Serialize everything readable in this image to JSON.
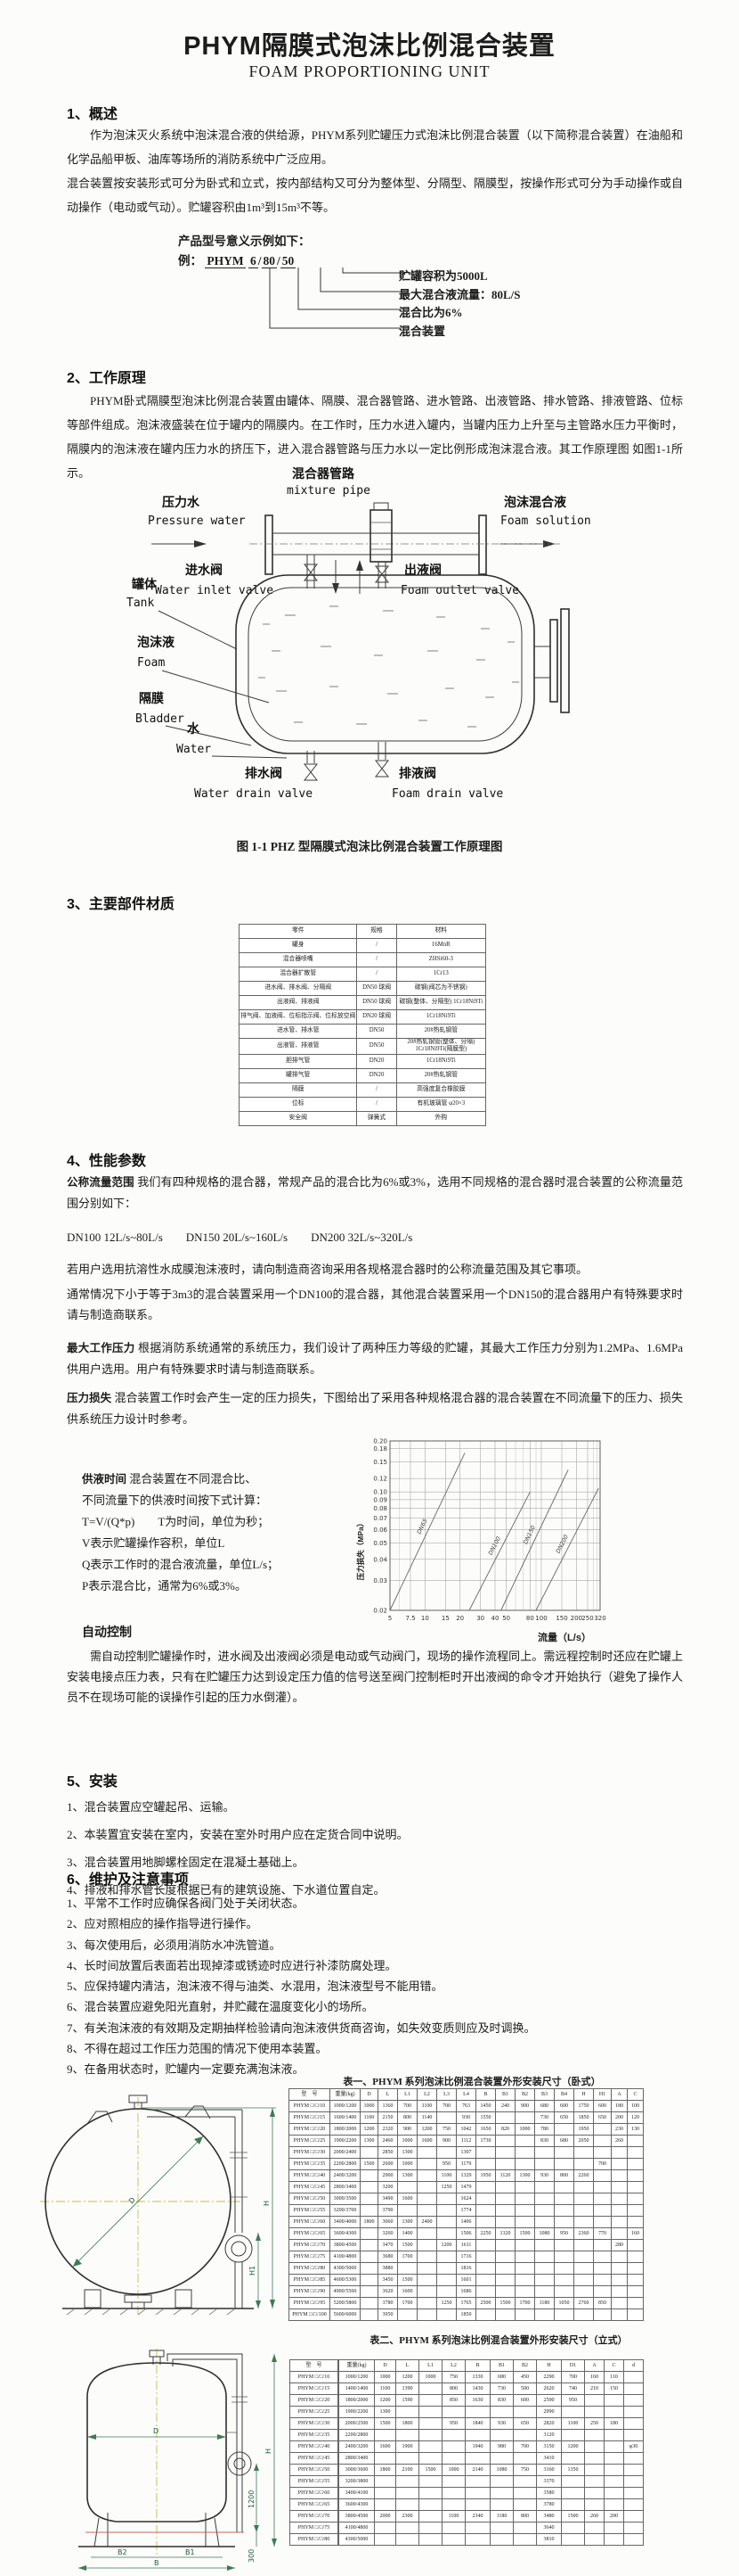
{
  "page": {
    "title": "PHYM隔膜式泡沫比例混合装置",
    "subtitle": "FOAM PROPORTIONING UNIT"
  },
  "s1": {
    "heading": "1、概述",
    "p1": "作为泡沫灭火系统中泡沫混合液的供给源，PHYM系列贮罐压力式泡沫比例混合装置（以下简称混合装置）在油船和化学品船甲板、油库等场所的消防系统中广泛应用。",
    "p2": "混合装置按安装形式可分为卧式和立式，按内部结构又可分为整体型、分隔型、隔膜型，按操作形式可分为手动操作或自动操作（电动或气动）。贮罐容积由1m³到15m³不等。"
  },
  "model": {
    "intro": "产品型号意义示例如下：",
    "prefix": "例：",
    "p1": "PHYM",
    "p2": "6",
    "p3": "80",
    "p4": "50",
    "sep": "/",
    "labels": [
      "贮罐容积为5000L",
      "最大混合液流量：80L/S",
      "混合比为6%",
      "混合装置"
    ]
  },
  "s2": {
    "heading": "2、工作原理",
    "p": "PHYM卧式隔膜型泡沫比例混合装置由罐体、隔膜、混合器管路、进水管路、出液管路、排水管路、排液管路、位标等部件组成。泡沫液盛装在位于罐内的隔膜内。在工作时，压力水进入罐内，当罐内压力上升至与主管路水压力平衡时，隔膜内的泡沫液在罐内压力水的挤压下，进入混合器管路与压力水以一定比例形成泡沫混合液。其工作原理图 如图1-1所示。"
  },
  "diagram": {
    "mixture_cn": "混合器管路",
    "mixture_en": "mixture pipe",
    "pressure_cn": "压力水",
    "pressure_en": "Pressure water",
    "solution_cn": "泡沫混合液",
    "solution_en": "Foam solution",
    "inlet_cn": "进水阀",
    "inlet_en": "Water inlet valve",
    "outlet_cn": "出液阀",
    "outlet_en": "Foam outlet valve",
    "tank_cn": "罐体",
    "tank_en": "Tank",
    "foam_cn": "泡沫液",
    "foam_en": "Foam",
    "bladder_cn": "隔膜",
    "bladder_en": "Bladder",
    "water_cn": "水",
    "water_en": "Water",
    "wdrain_cn": "排水阀",
    "wdrain_en": "Water drain valve",
    "fdrain_cn": "排液阀",
    "fdrain_en": "Foam drain valve"
  },
  "fig_caption": "图 1-1 PHZ 型隔膜式泡沫比例混合装置工作原理图",
  "s3": {
    "heading": "3、主要部件材质",
    "table": {
      "widths": [
        132,
        44,
        100
      ],
      "header": [
        "零件",
        "规格",
        "材料"
      ],
      "rows": [
        [
          "罐身",
          "/",
          "16MnR"
        ],
        [
          "混合器喷嘴",
          "/",
          "ZHSi60-3"
        ],
        [
          "混合器扩散管",
          "/",
          "1Cr13"
        ],
        [
          "进水阀、排水阀、分隔阀",
          "DN50 球阀",
          "碳钢(阀芯为不锈钢)"
        ],
        [
          "出液阀、排液阀",
          "DN50 球阀",
          "碳钢(整体、分隔型) 1Cr18Ni9Ti"
        ],
        [
          "排气阀、加液阀、位标指示阀、位标放空阀",
          "DN20 球阀",
          "1Cr18Ni9Ti"
        ],
        [
          "进水管、排水管",
          "DN50",
          "20#热轧钢管"
        ],
        [
          "出液管、排液管",
          "DN50",
          "20#热轧钢管(整体、分隔) 1Cr18Ni9Ti(隔膜型)"
        ],
        [
          "胆排气管",
          "DN20",
          "1Cr18Ni9Ti"
        ],
        [
          "罐排气管",
          "DN20",
          "20#热轧钢管"
        ],
        [
          "隔膜",
          "/",
          "高强度复合橡胶膜"
        ],
        [
          "位标",
          "/",
          "有机玻璃管 φ20×3"
        ],
        [
          "安全阀",
          "弹簧式",
          "外购"
        ]
      ]
    }
  },
  "s4": {
    "heading": "4、性能参数",
    "flow_label": "公称流量范围",
    "flow_text": "我们有四种规格的混合器，常规产品的混合比为6%或3%，选用不同规格的混合器时混合装置的公称流量范围分别如下：",
    "dn_line": "DN100  12L/s~80L/s　　DN150  20L/s~160L/s　　DN200  32L/s~320L/s",
    "p_afff": "若用户选用抗溶性水成膜泡沫液时，请向制造商咨询采用各规格混合器时的公称流量范围及其它事项。",
    "p_usual": "通常情况下小于等于3m3的混合装置采用一个DN100的混合器，其他混合装置采用一个DN150的混合器用户有特殊要求时请与制造商联系。",
    "maxp_label": "最大工作压力",
    "maxp_text": "根据消防系统通常的系统压力，我们设计了两种压力等级的贮罐，其最大工作压力分别为1.2MPa、1.6MPa供用户选用。用户有特殊要求时请与制造商联系。",
    "loss_label": "压力损失",
    "loss_text": "混合装置工作时会产生一定的压力损失，下图给出了采用各种规格混合器的混合装置在不同流量下的压力、损失供系统压力设计时参考。",
    "supply_label": "供液时间",
    "supply_first": "混合装置在不同混合比、",
    "supply_lines": [
      "不同流量下的供液时间按下式计算：",
      "T=V/(Q*p)　　T为时间，单位为秒；",
      "V表示贮罐操作容积，单位L",
      "Q表示工作时的混合液流量，单位L/s；",
      "P表示混合比，通常为6%或3%。"
    ],
    "auto_heading": "自动控制",
    "auto_text": "需自动控制贮罐操作时，进水阀及出液阀必须是电动或气动阀门，现场的操作流程同上。需远程控制时还应在贮罐上安装电接点压力表，只有在贮罐压力达到设定压力值的信号送至阀门控制柜时开出液阀的命令才开始执行（避免了操作人员不在现场可能的误操作引起的压力水倒灌）。"
  },
  "chart_data": {
    "type": "line",
    "title": "",
    "xlabel": "流量（L/s）",
    "ylabel": "压力损失（MPa）",
    "x_scale": "log",
    "y_scale": "log",
    "xlim": [
      5,
      320
    ],
    "ylim": [
      0.02,
      0.2
    ],
    "x_ticks": [
      "5",
      "7.5",
      "10",
      "15",
      "20",
      "30",
      "40",
      "50",
      "80",
      "100",
      "150",
      "200",
      "250",
      "320"
    ],
    "x_minor": [
      6,
      60,
      70,
      90,
      280,
      300
    ],
    "y_ticks": [
      "0.02",
      "0.03",
      "0.04",
      "0.05",
      "0.06",
      "0.07",
      "0.08",
      "0.09",
      "0.10",
      "0.12",
      "0.15",
      "0.18",
      "0.20"
    ],
    "grid": true,
    "legend": "labels-on-lines",
    "series": [
      {
        "name": "DN65",
        "points": [
          [
            5,
            0.02
          ],
          [
            22,
            0.17
          ]
        ]
      },
      {
        "name": "DN100",
        "points": [
          [
            24,
            0.02
          ],
          [
            80,
            0.1
          ]
        ]
      },
      {
        "name": "DN150",
        "points": [
          [
            45,
            0.02
          ],
          [
            170,
            0.135
          ]
        ]
      },
      {
        "name": "DN200",
        "points": [
          [
            90,
            0.02
          ],
          [
            310,
            0.105
          ]
        ]
      }
    ]
  },
  "s5": {
    "heading": "5、安装",
    "items": [
      "1、混合装置应空罐起吊、运输。",
      "2、本装置宜安装在室内，安装在室外时用户应在定货合同中说明。",
      "3、混合装置用地脚螺栓固定在混凝土基础上。",
      "4、排液和排水管长度根据已有的建筑设施、下水道位置自定。"
    ]
  },
  "s6": {
    "heading": "6、维护及注意事项",
    "items": [
      "1、平常不工作时应确保各阀门处于关闭状态。",
      "2、应对照相应的操作指导进行操作。",
      "3、每次使用后，必须用消防水冲洗管道。",
      "4、长时间放置后表面若出现掉漆或锈迹时应进行补漆防腐处理。",
      "5、应保持罐内清洁，泡沫液不得与油类、水混用，泡沫液型号不能用错。",
      "6、混合装置应避免阳光直射，并贮藏在温度变化小的场所。",
      "7、有关泡沫液的有效期及定期抽样检验请向泡沫液供货商咨询，如失效变质则应及时调换。",
      "8、不得在超过工作压力范围的情况下使用本装置。",
      "9、在备用状态时，贮罐内一定要充满泡沫液。"
    ]
  },
  "t1": {
    "title": "表一、PHYM 系列泡沫比例混合装置外形安装尺寸（卧式）",
    "table": {
      "widths": [
        46,
        34,
        20,
        22,
        22,
        22,
        22,
        22,
        22,
        22,
        22,
        22,
        22,
        22,
        20,
        18,
        18
      ],
      "header": [
        "型　号",
        "重量(kg)",
        "D",
        "L",
        "L1",
        "L2",
        "L3",
        "L4",
        "B",
        "B1",
        "B2",
        "B3",
        "B4",
        "H",
        "H1",
        "A",
        "C"
      ],
      "rows": [
        [
          "PHYM □/□/10",
          "1000/1200",
          "1000",
          "1360",
          "700",
          "1100",
          "700",
          "763",
          "1450",
          "240",
          "900",
          "680",
          "600",
          "1750",
          "600",
          "180",
          "100"
        ],
        [
          "PHYM □/□/15",
          "1600/1400",
          "1100",
          "2150",
          "800",
          "1140",
          "",
          "930",
          "1550",
          "",
          "",
          "730",
          "650",
          "1850",
          "650",
          "200",
          "120"
        ],
        [
          "PHYM □/□/20",
          "1800/2000",
          "1200",
          "2320",
          "900",
          "1200",
          "750",
          "1042",
          "1650",
          "820",
          "1000",
          "780",
          "",
          "1950",
          "",
          "230",
          "130"
        ],
        [
          "PHYM □/□/25",
          "1900/2200",
          "1300",
          "2460",
          "1000",
          "1600",
          "900",
          "1112",
          "1730",
          "",
          "",
          "830",
          "680",
          "2050",
          "",
          "260",
          ""
        ],
        [
          "PHYM □/□/30",
          "2000/2400",
          "",
          "2850",
          "1300",
          "",
          "",
          "1307",
          "",
          "",
          "",
          "",
          "",
          "",
          "",
          "",
          ""
        ],
        [
          "PHYM □/□/35",
          "2200/2800",
          "1500",
          "2600",
          "1000",
          "",
          "950",
          "1179",
          "",
          "",
          "",
          "",
          "",
          "",
          "700",
          "",
          ""
        ],
        [
          "PHYM □/□/40",
          "2400/3200",
          "",
          "2900",
          "1300",
          "",
          "1100",
          "1329",
          "1950",
          "1120",
          "1300",
          "930",
          "800",
          "2260",
          "",
          "",
          ""
        ],
        [
          "PHYM □/□/45",
          "2800/3400",
          "",
          "3200",
          "",
          "",
          "1250",
          "1479",
          "",
          "",
          "",
          "",
          "",
          "",
          "",
          "",
          ""
        ],
        [
          "PHYM □/□/50",
          "3000/3500",
          "",
          "3490",
          "1600",
          "",
          "",
          "1624",
          "",
          "",
          "",
          "",
          "",
          "",
          "",
          "",
          ""
        ],
        [
          "PHYM □/□/55",
          "3200/3700",
          "",
          "3790",
          "",
          "",
          "",
          "1774",
          "",
          "",
          "",
          "",
          "",
          "",
          "",
          "",
          ""
        ],
        [
          "PHYM □/□/60",
          "3400/4000",
          "1800",
          "3060",
          "1300",
          "2400",
          "",
          "1406",
          "",
          "",
          "",
          "",
          "",
          "",
          "",
          "",
          ""
        ],
        [
          "PHYM □/□/65",
          "3600/4300",
          "",
          "3260",
          "1400",
          "",
          "",
          "1506",
          "2250",
          "1320",
          "1500",
          "1080",
          "950",
          "2360",
          "770",
          "",
          "160"
        ],
        [
          "PHYM □/□/70",
          "3800/4500",
          "",
          "3470",
          "1500",
          "",
          "1200",
          "1611",
          "",
          "",
          "",
          "",
          "",
          "",
          "",
          "280",
          ""
        ],
        [
          "PHYM □/□/75",
          "4100/4800",
          "",
          "3680",
          "1700",
          "",
          "",
          "1716",
          "",
          "",
          "",
          "",
          "",
          "",
          "",
          "",
          ""
        ],
        [
          "PHYM □/□/80",
          "4300/5000",
          "",
          "3880",
          "",
          "",
          "",
          "1816",
          "",
          "",
          "",
          "",
          "",
          "",
          "",
          "",
          ""
        ],
        [
          "PHYM □/□/85",
          "4600/5300",
          "",
          "3450",
          "1500",
          "",
          "",
          "1601",
          "",
          "",
          "",
          "",
          "",
          "",
          "",
          "",
          ""
        ],
        [
          "PHYM □/□/90",
          "4900/5500",
          "",
          "3620",
          "1600",
          "",
          "",
          "1686",
          "",
          "",
          "",
          "",
          "",
          "",
          "",
          "",
          ""
        ],
        [
          "PHYM □/□/95",
          "5200/5800",
          "",
          "3780",
          "1700",
          "",
          "1250",
          "1765",
          "2500",
          "1500",
          "1700",
          "1180",
          "1050",
          "2760",
          "850",
          "",
          ""
        ],
        [
          "PHYM □/□/100",
          "5600/6000",
          "",
          "3950",
          "",
          "",
          "",
          "1850",
          "",
          "",
          "",
          "",
          "",
          "",
          "",
          "",
          ""
        ]
      ]
    }
  },
  "t2": {
    "title": "表二、PHYM 系列泡沫比例混合装置外形安装尺寸（立式）",
    "models": {
      "widths": [
        54
      ],
      "header": [
        "型　号"
      ],
      "rows": [
        [
          "PHYM □/□/10"
        ],
        [
          "PHYM □/□/15"
        ],
        [
          "PHYM □/□/20"
        ],
        [
          "PHYM □/□/25"
        ],
        [
          "PHYM □/□/30"
        ],
        [
          "PHYM □/□/35"
        ],
        [
          "PHYM □/□/40"
        ],
        [
          "PHYM □/□/45"
        ],
        [
          "PHYM □/□/50"
        ],
        [
          "PHYM □/□/55"
        ],
        [
          "PHYM □/□/60"
        ],
        [
          "PHYM □/□/65"
        ],
        [
          "PHYM □/□/70"
        ],
        [
          "PHYM □/□/75"
        ],
        [
          "PHYM □/□/80"
        ]
      ]
    },
    "table": {
      "widths": [
        40,
        24,
        26,
        26,
        26,
        28,
        26,
        26,
        28,
        26,
        22,
        22,
        22
      ],
      "header": [
        "重量(kg)",
        "D",
        "L",
        "L1",
        "L2",
        "B",
        "B1",
        "B2",
        "H",
        "D1",
        "A",
        "C",
        "d"
      ],
      "rows": [
        [
          "1000/1200",
          "1000",
          "1200",
          "1000",
          "750",
          "1330",
          "680",
          "450",
          "2290",
          "700",
          "160",
          "110",
          ""
        ],
        [
          "1400/1400",
          "1100",
          "1390",
          "",
          "800",
          "1430",
          "730",
          "500",
          "2620",
          "740",
          "210",
          "150",
          ""
        ],
        [
          "1800/2000",
          "1200",
          "1590",
          "",
          "850",
          "1630",
          "830",
          "600",
          "2590",
          "950",
          "",
          "",
          ""
        ],
        [
          "1900/2200",
          "1300",
          "",
          "",
          "",
          "",
          "",
          "",
          "2990",
          "",
          "",
          "",
          ""
        ],
        [
          "2000/2500",
          "1500",
          "1800",
          "",
          "950",
          "1840",
          "930",
          "650",
          "2820",
          "1100",
          "250",
          "180",
          ""
        ],
        [
          "2200/2800",
          "",
          "",
          "",
          "",
          "",
          "",
          "",
          "3120",
          "",
          "",
          "",
          ""
        ],
        [
          "2400/3200",
          "1600",
          "1900",
          "",
          "",
          "1940",
          "980",
          "700",
          "3150",
          "1200",
          "",
          "",
          "φ30"
        ],
        [
          "2800/3400",
          "",
          "",
          "",
          "",
          "",
          "",
          "",
          "3410",
          "",
          "",
          "",
          ""
        ],
        [
          "3000/3600",
          "1800",
          "2100",
          "1500",
          "1000",
          "2140",
          "1080",
          "750",
          "3160",
          "1350",
          "",
          "",
          ""
        ],
        [
          "3200/3800",
          "",
          "",
          "",
          "",
          "",
          "",
          "",
          "3370",
          "",
          "",
          "",
          ""
        ],
        [
          "3400/4100",
          "",
          "",
          "",
          "",
          "",
          "",
          "",
          "3580",
          "",
          "",
          "",
          ""
        ],
        [
          "3600/4300",
          "",
          "",
          "",
          "",
          "",
          "",
          "",
          "3780",
          "",
          "",
          "",
          ""
        ],
        [
          "3800/4500",
          "2000",
          "2300",
          "",
          "1100",
          "2340",
          "1180",
          "800",
          "3480",
          "1500",
          "260",
          "200",
          ""
        ],
        [
          "4100/4800",
          "",
          "",
          "",
          "",
          "",
          "",
          "",
          "3640",
          "",
          "",
          "",
          ""
        ],
        [
          "4300/5000",
          "",
          "",
          "",
          "",
          "",
          "",
          "",
          "3810",
          "",
          "",
          "",
          ""
        ]
      ]
    }
  },
  "dims": {
    "d": "D",
    "h": "H",
    "h1": "H1",
    "b": "B",
    "b1": "B1",
    "b2": "B2",
    "d1200": "1200",
    "d300": "300"
  }
}
